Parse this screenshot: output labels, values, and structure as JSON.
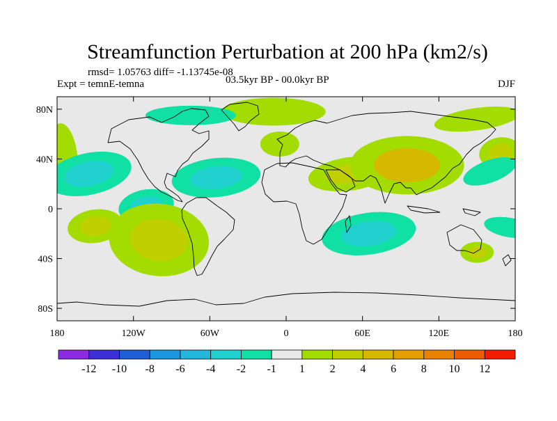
{
  "chart_data": {
    "type": "heatmap",
    "title": "Streamfunction Perturbation at 200 hPa (km2/s)",
    "rmsd_label": "rmsd= 1.05763 diff= -1.13745e-08",
    "experiment_label": "Expt = temnE-temna",
    "period_label": "03.5kyr BP - 00.0kyr BP",
    "season_label": "DJF",
    "xlim": [
      -180,
      180
    ],
    "ylim": [
      -90,
      90
    ],
    "x_ticks": [
      {
        "value": -180,
        "label": "180"
      },
      {
        "value": -120,
        "label": "120W"
      },
      {
        "value": -60,
        "label": "60W"
      },
      {
        "value": 0,
        "label": "0"
      },
      {
        "value": 60,
        "label": "60E"
      },
      {
        "value": 120,
        "label": "120E"
      },
      {
        "value": 180,
        "label": "180"
      }
    ],
    "y_ticks": [
      {
        "value": 80,
        "label": "80N"
      },
      {
        "value": 40,
        "label": "40N"
      },
      {
        "value": 0,
        "label": "0"
      },
      {
        "value": -40,
        "label": "40S"
      },
      {
        "value": -80,
        "label": "80S"
      }
    ],
    "colorbar": {
      "colors": [
        "#8a2be2",
        "#3d2fd6",
        "#1f5fd6",
        "#1996e0",
        "#22b7db",
        "#1fd0cf",
        "#10e0a3",
        "#e8e8e8",
        "#a3dc00",
        "#c0cf00",
        "#d7b800",
        "#e3a000",
        "#e98200",
        "#ee5c00",
        "#f21c00"
      ],
      "labels": [
        "-12",
        "-10",
        "-8",
        "-6",
        "-4",
        "-2",
        "-1",
        "1",
        "2",
        "4",
        "6",
        "8",
        "10",
        "12"
      ]
    },
    "background_level": "-1 to 1",
    "anomalies": [
      {
        "name": "north-pacific-arctic-positive",
        "lon": 150,
        "lat": 72,
        "value": 1.5
      },
      {
        "name": "north-pacific-west-positive",
        "lon": -175,
        "lat": 42,
        "value": 1.5
      },
      {
        "name": "north-pacific-negative",
        "lon": -155,
        "lat": 28,
        "value": -2.5
      },
      {
        "name": "tropical-pacific-negative",
        "lon": -110,
        "lat": 2,
        "value": -2.5
      },
      {
        "name": "south-pacific-positive",
        "lon": -150,
        "lat": -14,
        "value": 2.5
      },
      {
        "name": "south-america-positive",
        "lon": -100,
        "lat": -25,
        "value": 3
      },
      {
        "name": "caribbean-atlantic-negative",
        "lon": -55,
        "lat": 25,
        "value": -3
      },
      {
        "name": "arctic-europe-positive",
        "lon": -10,
        "lat": 78,
        "value": 1.5
      },
      {
        "name": "north-atlantic-arctic-negative",
        "lon": -75,
        "lat": 75,
        "value": -1.5
      },
      {
        "name": "mediterranean-arctic-positive",
        "lon": -5,
        "lat": 52,
        "value": 1.5
      },
      {
        "name": "africa-asia-positive",
        "lon": 50,
        "lat": 28,
        "value": 2
      },
      {
        "name": "tibet-positive",
        "lon": 95,
        "lat": 35,
        "value": 4.5
      },
      {
        "name": "indian-ocean-negative",
        "lon": 65,
        "lat": -20,
        "value": -3.5
      },
      {
        "name": "australia-positive",
        "lon": 150,
        "lat": -35,
        "value": 2
      },
      {
        "name": "east-pacific-north-positive",
        "lon": 168,
        "lat": 45,
        "value": 3
      },
      {
        "name": "east-pacific-north-negative",
        "lon": 160,
        "lat": 30,
        "value": -1.5
      },
      {
        "name": "south-west-pacific-negative",
        "lon": 175,
        "lat": -15,
        "value": -1.5
      }
    ]
  }
}
